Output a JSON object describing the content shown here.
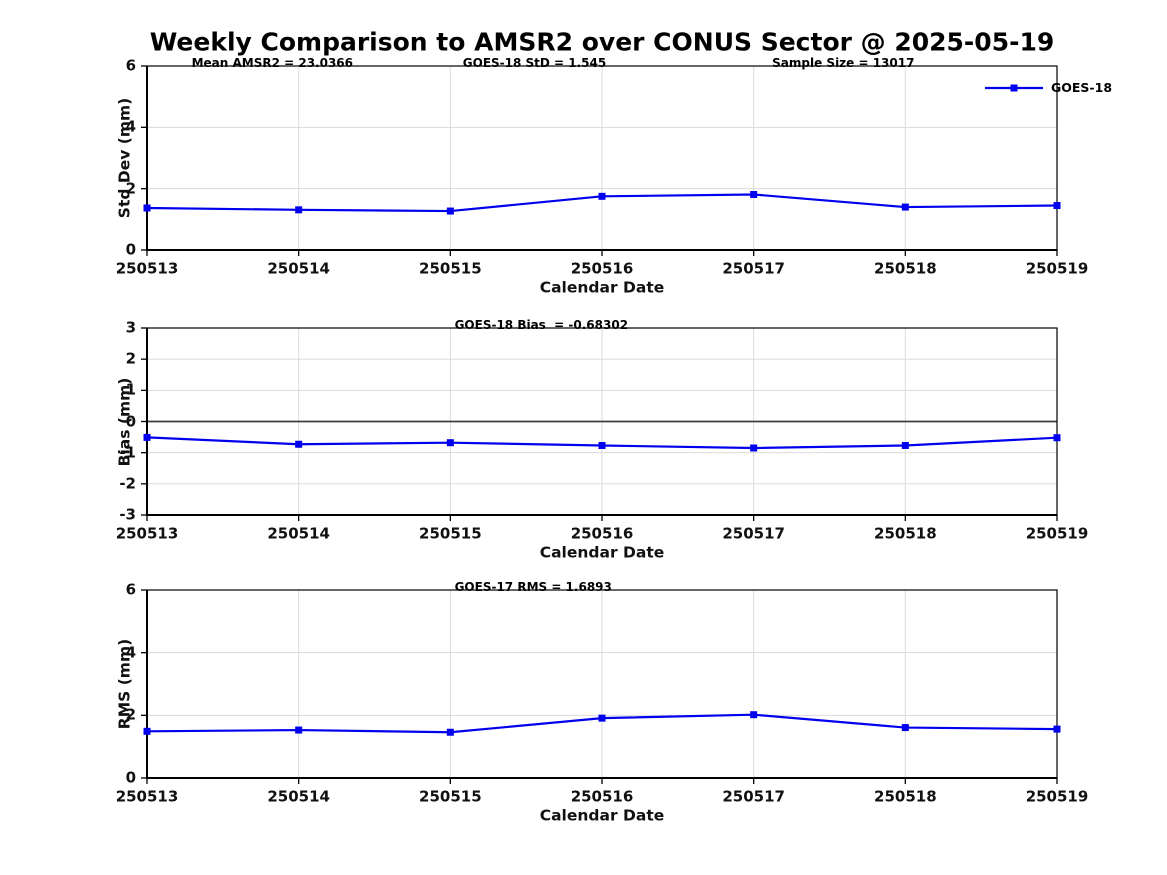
{
  "page_title": "Weekly Comparison to AMSR2 over CONUS Sector @ 2025-05-19",
  "colors": {
    "series": "#0000EE",
    "grid": "#DBDBDB",
    "axis": "#000000",
    "zero_line": "#3C3C3C"
  },
  "chart_data": [
    {
      "type": "line",
      "ylabel": "Std Dev (mm)",
      "xlabel": "Calendar Date",
      "x": [
        "250513",
        "250514",
        "250515",
        "250516",
        "250517",
        "250518",
        "250519"
      ],
      "series": [
        {
          "name": "GOES-18",
          "values": [
            1.37,
            1.31,
            1.27,
            1.75,
            1.81,
            1.4,
            1.45
          ]
        }
      ],
      "ylim": [
        0,
        6
      ],
      "yticks": [
        0,
        2,
        4,
        6
      ],
      "grid": true,
      "legend": "GOES-18",
      "legend_position": "top-right",
      "annotations": [
        {
          "text": "Mean AMSR2 = 23.0366",
          "x": 0.049
        },
        {
          "text": "GOES-18 StD = 1.545",
          "x": 0.347
        },
        {
          "text": "Sample Size = 13017",
          "x": 0.687
        }
      ]
    },
    {
      "type": "line",
      "ylabel": "Bias (mm)",
      "xlabel": "Calendar Date",
      "x": [
        "250513",
        "250514",
        "250515",
        "250516",
        "250517",
        "250518",
        "250519"
      ],
      "series": [
        {
          "name": "GOES-18",
          "values": [
            -0.51,
            -0.73,
            -0.68,
            -0.77,
            -0.85,
            -0.77,
            -0.52
          ]
        }
      ],
      "ylim": [
        -3,
        3
      ],
      "yticks": [
        3,
        2,
        1,
        0,
        -1,
        -2,
        -3
      ],
      "grid": true,
      "zero_line": true,
      "annotations": [
        {
          "text": "GOES-18 Bias  = -0.68302",
          "x": 0.338
        }
      ]
    },
    {
      "type": "line",
      "ylabel": "RMS (mm)",
      "xlabel": "Calendar Date",
      "x": [
        "250513",
        "250514",
        "250515",
        "250516",
        "250517",
        "250518",
        "250519"
      ],
      "series": [
        {
          "name": "GOES-18",
          "values": [
            1.49,
            1.53,
            1.46,
            1.91,
            2.02,
            1.61,
            1.56
          ]
        }
      ],
      "ylim": [
        0,
        6
      ],
      "yticks": [
        0,
        2,
        4,
        6
      ],
      "grid": true,
      "annotations": [
        {
          "text": "GOES-17 RMS = 1.6893",
          "x": 0.338
        }
      ]
    }
  ]
}
